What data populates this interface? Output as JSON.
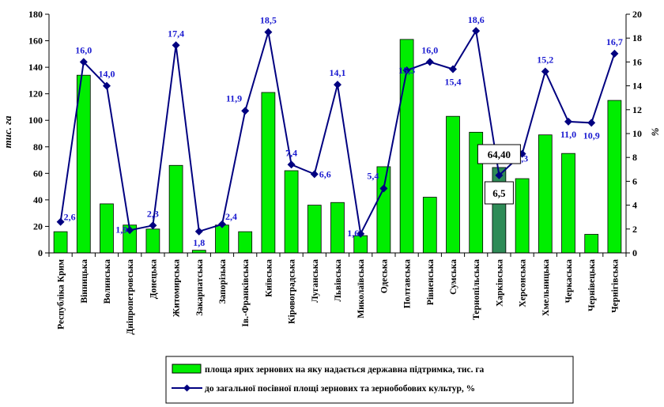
{
  "chart_data": {
    "type": "bar",
    "categories": [
      "Республіка Крим",
      "Вінницька",
      "Волинська",
      "Дніпропетровська",
      "Донецька",
      "Житомирська",
      "Закарпатська",
      "Запорізька",
      "Ів.-Франківська",
      "Київська",
      "Кіровоградська",
      "Луганська",
      "Львівська",
      "Миколаївська",
      "Одеська",
      "Полтавська",
      "Рівненська",
      "Сумська",
      "Тернопільська",
      "Харківська",
      "Херсонська",
      "Хмельницька",
      "Черкаська",
      "Чернівецька",
      "Чернігівська"
    ],
    "series": [
      {
        "name": "площа ярих зернових на яку надається державна підтримка, тис. га",
        "type": "bar",
        "axis": "left",
        "values": [
          16,
          134,
          37,
          21,
          18,
          66,
          2,
          21,
          16,
          121,
          62,
          36,
          38,
          13,
          65,
          161,
          42,
          103,
          91,
          64.4,
          56,
          89,
          75,
          14,
          115
        ]
      },
      {
        "name": "до загальної посівної площі зернових та зернобобових культур, %",
        "type": "line",
        "axis": "right",
        "values": [
          2.6,
          16.0,
          14.0,
          1.9,
          2.3,
          17.4,
          1.8,
          2.4,
          11.9,
          18.5,
          7.4,
          6.6,
          14.1,
          1.6,
          5.4,
          15.3,
          16.0,
          15.4,
          18.6,
          6.5,
          8.3,
          15.2,
          11.0,
          10.9,
          16.7
        ],
        "labels": [
          "2,6",
          "16,0",
          "14,0",
          "1,9",
          "2,3",
          "17,4",
          "1,8",
          "2,4",
          "11,9",
          "18,5",
          "7,4",
          "6,6",
          "14,1",
          "1,6",
          "5,4",
          "15,3",
          "16,0",
          "15,4",
          "18,6",
          "6,5",
          "8,3",
          "15,2",
          "11,0",
          "10,9",
          "16,7"
        ]
      }
    ],
    "ylabel": "тис. га",
    "y2label": "%",
    "ylim": [
      0,
      180
    ],
    "y2lim": [
      0,
      20
    ],
    "yticks": [
      "0",
      "20",
      "40",
      "60",
      "80",
      "100",
      "120",
      "140",
      "160",
      "180"
    ],
    "y2ticks": [
      "0",
      "2",
      "4",
      "6",
      "8",
      "10",
      "12",
      "14",
      "16",
      "18",
      "20"
    ],
    "highlight": {
      "category": "Харківська",
      "bar_label": "64,40",
      "point_label": "6,5"
    },
    "legend_position": "bottom",
    "colors": {
      "bar": "#00ee00",
      "bar_highlight": "#2e8b57",
      "line": "#000080",
      "data_label": "#1a1ad0"
    }
  }
}
